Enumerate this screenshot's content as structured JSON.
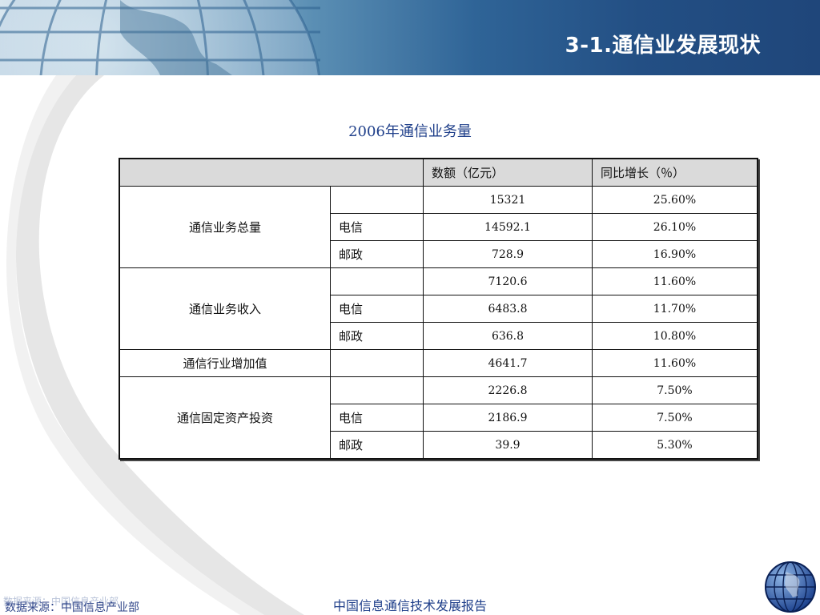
{
  "header": {
    "title": "3-1.通信业发展现状"
  },
  "table": {
    "title": "2006年通信业务量",
    "columns": [
      "",
      "数额（亿元）",
      "同比增长（％）"
    ],
    "groups": [
      {
        "category": "通信业务总量",
        "rows": [
          {
            "sub": "",
            "value": "15321",
            "growth": "25.60%"
          },
          {
            "sub": "电信",
            "value": "14592.1",
            "growth": "26.10%"
          },
          {
            "sub": "邮政",
            "value": "728.9",
            "growth": "16.90%"
          }
        ]
      },
      {
        "category": "通信业务收入",
        "rows": [
          {
            "sub": "",
            "value": "7120.6",
            "growth": "11.60%"
          },
          {
            "sub": "电信",
            "value": "6483.8",
            "growth": "11.70%"
          },
          {
            "sub": "邮政",
            "value": "636.8",
            "growth": "10.80%"
          }
        ]
      },
      {
        "category": "通信行业增加值",
        "rows": [
          {
            "sub": "",
            "value": "4641.7",
            "growth": "11.60%"
          }
        ]
      },
      {
        "category": "通信固定资产投资",
        "rows": [
          {
            "sub": "",
            "value": "2226.8",
            "growth": "7.50%"
          },
          {
            "sub": "电信",
            "value": "2186.9",
            "growth": "7.50%"
          },
          {
            "sub": "邮政",
            "value": "39.9",
            "growth": "5.30%"
          }
        ]
      }
    ]
  },
  "footer": {
    "center_text": "中国信息通信技术发展报告",
    "source_text": "数据来源：中国信息产业部"
  },
  "colors": {
    "banner_dark": "#1f467a",
    "title_text": "#1f3f8a",
    "header_row_bg": "#dadada"
  },
  "icons": {
    "banner": "globe-banner-icon",
    "corner": "globe-icon"
  }
}
